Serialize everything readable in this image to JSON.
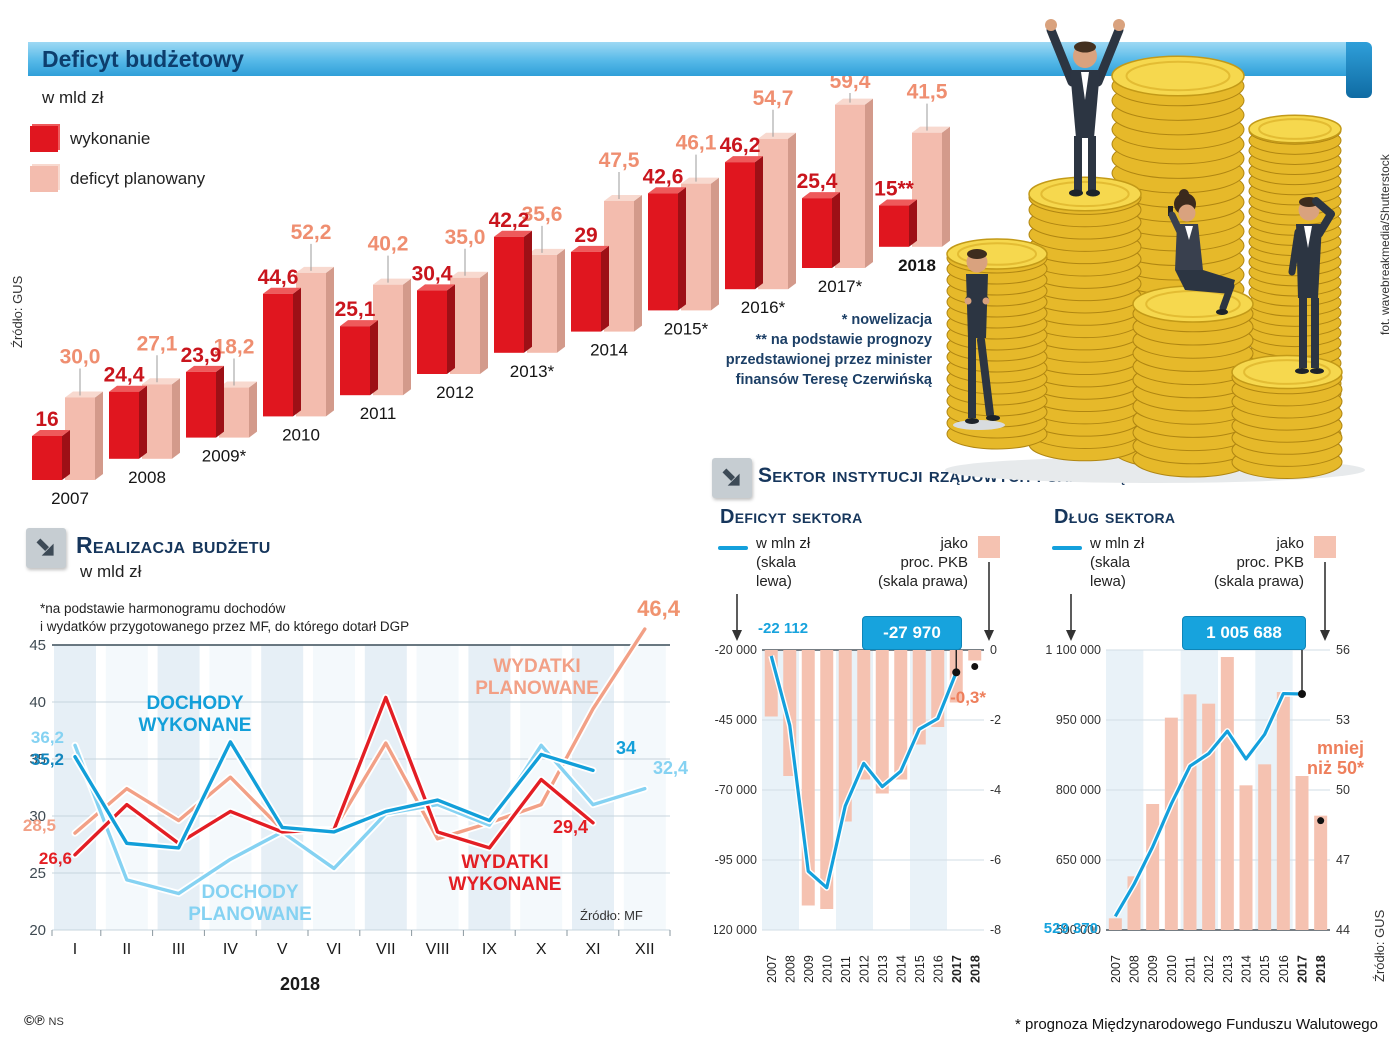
{
  "sections": {
    "header": {
      "title": "Deficyt budżetowy"
    },
    "photo": {
      "credit": "fot. wavebreakmedia/Shutterstock"
    },
    "budget": {
      "unit": "w mld zł",
      "legend_wykonanie": "wykonanie",
      "legend_planowany": "deficyt planowany",
      "source": "Źródło: GUS",
      "notes": {
        "l1": "* nowelizacja",
        "l2": "** na podstawie prognozy",
        "l3": "przedstawionej przez minister",
        "l4": "finansów Teresę Czerwińską"
      }
    },
    "realizacja": {
      "title": "Realizacja budżetu",
      "unit": "w mld zł",
      "f1": "*na podstawie harmonogramu dochodów",
      "f2": "i wydatków przygotowanego przez MF, do którego dotarł DGP",
      "source": "Źródło: MF",
      "year": "2018"
    },
    "sektor": {
      "title": "Sektor instytucji rządowych i samorządowych",
      "deficyt": {
        "title": "Deficyt sektora",
        "legend_left": {
          "l1": "w mln zł",
          "l2": "(skala",
          "l3": "lewa)"
        },
        "legend_right": {
          "l1": "jako",
          "l2": "proc. PKB",
          "l3": "(skala prawa)"
        }
      },
      "dlug": {
        "title": "Dług sektora",
        "legend_left": {
          "l1": "w mln zł",
          "l2": "(skala",
          "l3": "lewa)"
        },
        "legend_right": {
          "l1": "jako",
          "l2": "proc. PKB",
          "l3": "(skala prawa)"
        },
        "source": "Źródło: GUS"
      },
      "footnote": "* prognoza Międzynarodowego Funduszu Walutowego"
    },
    "footer": {
      "copyright": "©℗",
      "initials": "NS"
    }
  },
  "chart_data": [
    {
      "id": "budget-deficit-bars",
      "type": "bar",
      "title": "Deficyt budżetowy",
      "ylabel": "w mld zł",
      "categories": [
        "2007",
        "2008",
        "2009*",
        "2010",
        "2011",
        "2012",
        "2013*",
        "2014",
        "2015*",
        "2016*",
        "2017*",
        "2018"
      ],
      "series": [
        {
          "name": "wykonanie",
          "color": "#e0161f",
          "values": [
            16,
            24.4,
            23.9,
            44.6,
            25.1,
            30.4,
            42.2,
            29,
            42.6,
            46.2,
            25.4,
            15
          ],
          "labels": [
            "16",
            "24,4",
            "23,9",
            "44,6",
            "25,1",
            "30,4",
            "42,2",
            "29",
            "42,6",
            "46,2",
            "25,4",
            "15**"
          ]
        },
        {
          "name": "deficyt planowany",
          "color": "#f3bcae",
          "values": [
            30.0,
            27.1,
            18.2,
            52.2,
            40.2,
            35.0,
            35.6,
            47.5,
            46.1,
            54.7,
            59.4,
            41.5
          ],
          "labels": [
            "30,0",
            "27,1",
            "18,2",
            "52,2",
            "40,2",
            "35,0",
            "35,6",
            "47,5",
            "46,1",
            "54,7",
            "59,4",
            "41,5"
          ]
        }
      ]
    },
    {
      "id": "realizacja-budzetu",
      "type": "line",
      "ylabel": "w mld zł",
      "x": [
        "I",
        "II",
        "III",
        "IV",
        "V",
        "VI",
        "VII",
        "VIII",
        "IX",
        "X",
        "XI",
        "XII"
      ],
      "ylim": [
        20,
        45
      ],
      "yticks": [
        45,
        40,
        35,
        30,
        25,
        20
      ],
      "series": [
        {
          "name": "WYDATKI PLANOWANE",
          "color": "#f2a086",
          "values": [
            28.5,
            32.4,
            29.6,
            33.4,
            28.8,
            28.8,
            36.4,
            28.0,
            29.4,
            31.0,
            39.4,
            46.4
          ]
        },
        {
          "name": "DOCHODY PLANOWANE",
          "color": "#85d2f2",
          "values": [
            36.2,
            24.4,
            23.2,
            26.2,
            28.6,
            25.4,
            30.2,
            31.0,
            29.2,
            36.2,
            31.0,
            32.4
          ]
        },
        {
          "name": "WYDATKI WYKONANE",
          "color": "#e31e24",
          "values": [
            26.6,
            31.0,
            27.6,
            30.4,
            28.6,
            28.8,
            40.4,
            28.6,
            27.2,
            33.2,
            29.4,
            null
          ]
        },
        {
          "name": "DOCHODY WYKONANE",
          "color": "#129fd9",
          "values": [
            35.2,
            27.6,
            27.2,
            36.5,
            29.0,
            28.6,
            30.4,
            31.4,
            29.6,
            35.4,
            34.0,
            null
          ]
        }
      ],
      "annotations": {
        "start": {
          "dp": "36,2",
          "dw": "35,2",
          "wp": "28,5",
          "ww": "26,6"
        },
        "end": {
          "wp": "46,4",
          "dw": "34",
          "dp": "32,4",
          "ww": "29,4"
        }
      }
    },
    {
      "id": "deficyt-sektora",
      "type": "bar+line",
      "years": [
        "2007",
        "2008",
        "2009",
        "2010",
        "2011",
        "2012",
        "2013",
        "2014",
        "2015",
        "2016",
        "2017",
        "2018"
      ],
      "line_series": {
        "name": "w mln zł (skala lewa)",
        "values": [
          -22112,
          -46900,
          -99000,
          -104900,
          -75700,
          -60500,
          -68800,
          -63300,
          -48300,
          -44500,
          -27970
        ]
      },
      "bar_series": {
        "name": "jako proc. PKB (skala prawa)",
        "values": [
          -1.9,
          -3.6,
          -7.3,
          -7.4,
          -4.9,
          -3.7,
          -4.1,
          -3.7,
          -2.7,
          -2.2,
          -1.5,
          -0.3
        ]
      },
      "left_ticks": [
        "-20 000",
        "-45 000",
        "-70 000",
        "-95 000",
        "-120 000"
      ],
      "right_ticks": [
        "0",
        "-2",
        "-4",
        "-6",
        "-8"
      ],
      "left_range": [
        -20000,
        -120000
      ],
      "right_range": [
        0,
        -8
      ],
      "annotations": {
        "start": "-22 112",
        "end_box": "-27 970",
        "bar_2018": "-0,3*"
      }
    },
    {
      "id": "dlug-sektora",
      "type": "bar+line",
      "years": [
        "2007",
        "2008",
        "2009",
        "2010",
        "2011",
        "2012",
        "2013",
        "2014",
        "2015",
        "2016",
        "2017",
        "2018"
      ],
      "line_series": {
        "name": "w mln zł (skala lewa)",
        "values": [
          529370,
          597800,
          678300,
          770400,
          851200,
          878000,
          926100,
          866500,
          919300,
          1006600,
          1005688
        ]
      },
      "bar_series": {
        "name": "jako proc. PKB (skala prawa)",
        "values": [
          44.5,
          46.3,
          49.4,
          53.1,
          54.1,
          53.7,
          55.7,
          50.2,
          51.1,
          54.2,
          50.6,
          48.9
        ]
      },
      "left_ticks": [
        "1 100 000",
        "950 000",
        "800 000",
        "650 000",
        "500 000"
      ],
      "right_ticks": [
        "56",
        "53",
        "50",
        "47",
        "44"
      ],
      "left_range": [
        1100000,
        500000
      ],
      "right_range": [
        56,
        44
      ],
      "annotations": {
        "start": "529 370",
        "end_box": "1 005 688",
        "bar_2018": "mniej niż 50*"
      }
    }
  ]
}
